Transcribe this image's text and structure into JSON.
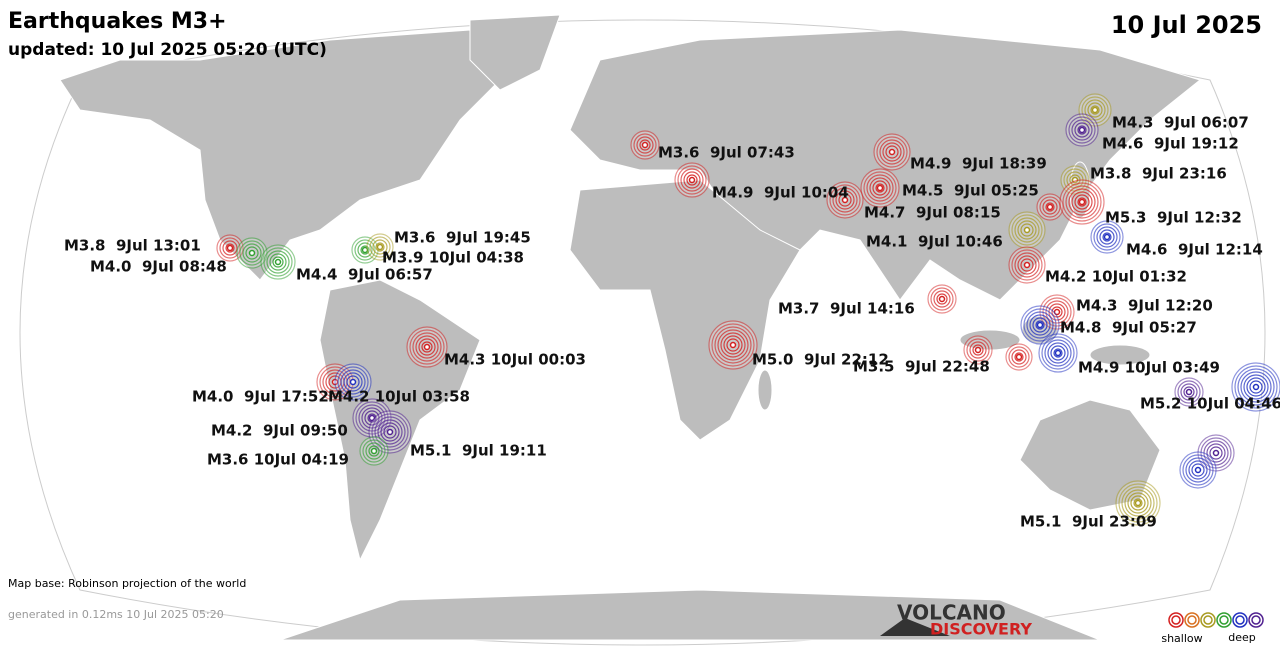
{
  "header": {
    "title": "Earthquakes M3+",
    "updated": "updated: 10 Jul 2025 05:20 (UTC)",
    "date": "10 Jul 2025"
  },
  "labels": [
    "M4.3  9Jul 06:07",
    "M4.6  9Jul 19:12",
    "M3.6  9Jul 07:43",
    "M4.9  9Jul 18:39",
    "M3.8  9Jul 23:16",
    "M4.9  9Jul 10:04",
    "M4.5  9Jul 05:25",
    "M4.7  9Jul 08:15",
    "M5.3  9Jul 12:32",
    "M3.8  9Jul 13:01",
    "M3.6  9Jul 19:45",
    "M4.1  9Jul 10:46",
    "M4.6  9Jul 12:14",
    "M4.0  9Jul 08:48",
    "M3.9 10Jul 04:38",
    "M4.4  9Jul 06:57",
    "M4.2 10Jul 01:32",
    "M3.7  9Jul 14:16",
    "M4.3  9Jul 12:20",
    "M4.8  9Jul 05:27",
    "M4.3 10Jul 00:03",
    "M5.0  9Jul 22:12",
    "M3.5  9Jul 22:48",
    "M4.9 10Jul 03:49",
    "M4.0  9Jul 17:52",
    "M4.2 10Jul 03:58",
    "M5.2 10Jul 04:46",
    "M4.2  9Jul 09:50",
    "M5.1  9Jul 19:11",
    "M3.6 10Jul 04:19",
    "M5.1  9Jul 23:09"
  ],
  "legend": {
    "depth_colors": [
      "#d42020",
      "#d87020",
      "#a89a20",
      "#30a030",
      "#2030c0",
      "#502090"
    ],
    "shallow": "shallow",
    "deep": "deep"
  },
  "footer": {
    "map_base": "Map base: Robinson projection of the world",
    "generated": "generated in 0.12ms 10 Jul 2025 05:20"
  },
  "logo": {
    "line1": "VOLCANO",
    "line2": "DISCOVERY"
  }
}
